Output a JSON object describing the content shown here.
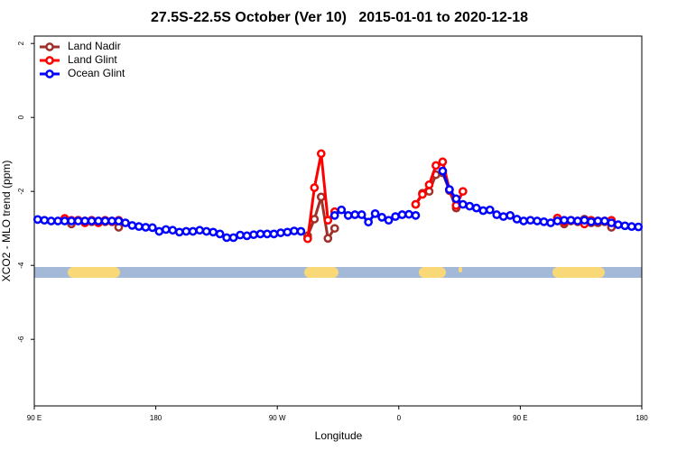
{
  "chart_data": {
    "type": "line",
    "title": "27.5S-22.5S October (Ver 10)   2015-01-01 to 2020-12-18",
    "xlabel": "Longitude",
    "ylabel": "XCO2 - MLO trend (ppm)",
    "xlim": [
      90,
      540
    ],
    "xticks": [
      {
        "value": 90,
        "label": "90 E"
      },
      {
        "value": 180,
        "label": "180"
      },
      {
        "value": 270,
        "label": "90 W"
      },
      {
        "value": 360,
        "label": "0"
      },
      {
        "value": 450,
        "label": "90 E"
      },
      {
        "value": 540,
        "label": "180"
      }
    ],
    "ylim": [
      -7.8,
      2.2
    ],
    "yticks": [
      2,
      0,
      -2,
      -4,
      -6
    ],
    "legend": "top-left",
    "x": [
      92.5,
      97.5,
      102.5,
      107.5,
      112.5,
      117.5,
      122.5,
      127.5,
      132.5,
      137.5,
      142.5,
      147.5,
      152.5,
      157.5,
      162.5,
      167.5,
      172.5,
      177.5,
      182.5,
      187.5,
      192.5,
      197.5,
      202.5,
      207.5,
      212.5,
      217.5,
      222.5,
      227.5,
      232.5,
      237.5,
      242.5,
      247.5,
      252.5,
      257.5,
      262.5,
      267.5,
      272.5,
      277.5,
      282.5,
      287.5,
      292.5,
      297.5,
      302.5,
      307.5,
      312.5,
      317.5,
      322.5,
      327.5,
      332.5,
      337.5,
      342.5,
      347.5,
      352.5,
      357.5,
      362.5,
      367.5,
      372.5,
      377.5,
      382.5,
      387.5,
      392.5,
      397.5,
      402.5,
      407.5,
      412.5,
      417.5,
      422.5,
      427.5,
      432.5,
      437.5,
      442.5,
      447.5,
      452.5,
      457.5,
      462.5,
      467.5,
      472.5,
      477.5,
      482.5,
      487.5,
      492.5,
      497.5,
      502.5,
      507.5,
      512.5,
      517.5,
      522.5,
      527.5,
      532.5,
      537.5
    ],
    "series": [
      {
        "name": "Land Nadir",
        "color": "#a0302a",
        "values": [
          null,
          null,
          null,
          null,
          null,
          -2.88,
          -2.78,
          -2.8,
          -2.82,
          -2.8,
          -2.82,
          -2.8,
          -2.97,
          null,
          null,
          null,
          null,
          null,
          null,
          null,
          null,
          null,
          null,
          null,
          null,
          null,
          null,
          null,
          null,
          null,
          null,
          null,
          null,
          null,
          null,
          null,
          null,
          null,
          null,
          null,
          -3.2,
          -2.75,
          -2.15,
          -3.27,
          -3.0,
          null,
          null,
          null,
          null,
          null,
          null,
          null,
          null,
          null,
          null,
          null,
          -2.35,
          -2.05,
          -2.0,
          -1.55,
          -1.5,
          -1.98,
          -2.45,
          null,
          null,
          null,
          null,
          null,
          null,
          null,
          null,
          null,
          null,
          null,
          null,
          null,
          null,
          -2.75,
          -2.88,
          -2.8,
          -2.82,
          -2.75,
          -2.85,
          -2.85,
          -2.82,
          -2.97,
          null,
          null,
          null,
          null
        ]
      },
      {
        "name": "Land Glint",
        "color": "#ff0000",
        "values": [
          null,
          null,
          null,
          null,
          -2.73,
          -2.78,
          -2.78,
          -2.85,
          -2.78,
          -2.85,
          -2.78,
          -2.82,
          -2.78,
          null,
          null,
          null,
          null,
          null,
          null,
          null,
          null,
          null,
          null,
          null,
          null,
          null,
          null,
          null,
          null,
          null,
          null,
          null,
          null,
          null,
          null,
          null,
          null,
          null,
          null,
          null,
          -3.28,
          -1.9,
          -0.98,
          -2.78,
          -2.55,
          null,
          null,
          null,
          null,
          null,
          null,
          null,
          null,
          null,
          null,
          null,
          -2.35,
          -2.08,
          -1.82,
          -1.3,
          -1.2,
          -1.95,
          -2.38,
          -2.0,
          null,
          null,
          null,
          null,
          null,
          null,
          null,
          null,
          null,
          null,
          null,
          null,
          null,
          -2.72,
          -2.82,
          -2.78,
          -2.8,
          -2.88,
          -2.78,
          -2.8,
          -2.8,
          -2.78,
          null,
          null,
          null,
          null
        ]
      },
      {
        "name": "Ocean Glint",
        "color": "#0000ff",
        "values": [
          -2.76,
          -2.78,
          -2.8,
          -2.8,
          -2.8,
          -2.8,
          -2.8,
          -2.8,
          -2.8,
          -2.8,
          -2.8,
          -2.8,
          -2.8,
          -2.85,
          -2.92,
          -2.95,
          -2.97,
          -2.98,
          -3.08,
          -3.03,
          -3.05,
          -3.1,
          -3.08,
          -3.08,
          -3.05,
          -3.08,
          -3.1,
          -3.15,
          -3.25,
          -3.25,
          -3.18,
          -3.2,
          -3.17,
          -3.15,
          -3.15,
          -3.15,
          -3.12,
          -3.1,
          -3.07,
          -3.08,
          null,
          null,
          null,
          null,
          -2.65,
          -2.5,
          -2.65,
          -2.63,
          -2.63,
          -2.83,
          -2.6,
          -2.7,
          -2.78,
          -2.68,
          -2.63,
          -2.62,
          -2.65,
          null,
          null,
          null,
          -1.45,
          -1.95,
          -2.2,
          -2.35,
          -2.4,
          -2.45,
          -2.52,
          -2.5,
          -2.63,
          -2.68,
          -2.65,
          -2.75,
          -2.8,
          -2.78,
          -2.8,
          -2.82,
          -2.85,
          -2.8,
          -2.78,
          -2.78,
          -2.8,
          -2.78,
          -2.82,
          -2.8,
          -2.8,
          -2.85,
          -2.9,
          -2.93,
          -2.95,
          -2.96
        ]
      }
    ]
  }
}
